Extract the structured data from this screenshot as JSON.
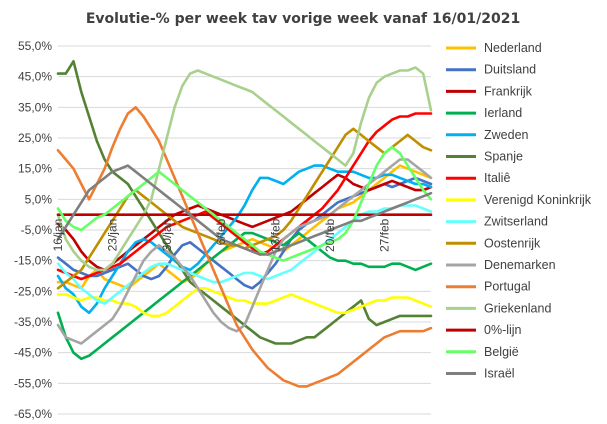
{
  "chart_data": {
    "type": "line",
    "title": "Evolutie-% per week tav vorige week vanaf 16/01/2021",
    "xlabel": "",
    "ylabel": "",
    "ylim": [
      -65,
      55
    ],
    "yticks": [
      55,
      45,
      35,
      25,
      15,
      5,
      -5,
      -15,
      -25,
      -35,
      -45,
      -55,
      -65
    ],
    "ytick_labels": [
      "55,0%",
      "45,0%",
      "35,0%",
      "25,0%",
      "15,0%",
      "5,0%",
      "-5,0%",
      "-15,0%",
      "-25,0%",
      "-35,0%",
      "-45,0%",
      "-55,0%",
      "-65,0%"
    ],
    "x_tick_labels": [
      "16/jan",
      "23/jan",
      "30/jan",
      "6/feb",
      "13/feb",
      "20/feb",
      "27/feb"
    ],
    "x_days": 48,
    "x_tick_positions": [
      0,
      7,
      14,
      21,
      28,
      35,
      42
    ],
    "grid": "horizontal",
    "legend": "right",
    "series": [
      {
        "name": "Nederland",
        "color": "#FFC000",
        "values": [
          -22,
          -22,
          -23,
          -24,
          -20,
          -18,
          -21,
          -22,
          -23,
          -24,
          -22,
          -20,
          -18,
          -16,
          -18,
          -20,
          -22,
          -21,
          -19,
          -16,
          -14,
          -12,
          -11,
          -10,
          -9,
          -8,
          -9,
          -10,
          -11,
          -12,
          -10,
          -8,
          -6,
          -4,
          -2,
          0,
          2,
          3,
          4,
          6,
          8,
          10,
          12,
          14,
          16,
          15,
          14,
          13,
          12
        ]
      },
      {
        "name": "Duitsland",
        "color": "#4472C4",
        "values": [
          -14,
          -16,
          -18,
          -19,
          -20,
          -20,
          -19,
          -18,
          -17,
          -16,
          -18,
          -20,
          -21,
          -20,
          -17,
          -13,
          -10,
          -9,
          -11,
          -13,
          -15,
          -17,
          -19,
          -21,
          -23,
          -24,
          -22,
          -19,
          -16,
          -12,
          -8,
          -5,
          -3,
          -2,
          0,
          2,
          4,
          5,
          6,
          7,
          8,
          9,
          10,
          9,
          10,
          11,
          12,
          11,
          10
        ]
      },
      {
        "name": "Frankrijk",
        "color": "#C00000",
        "values": [
          -3,
          -5,
          -8,
          -12,
          -15,
          -17,
          -18,
          -16,
          -14,
          -12,
          -10,
          -8,
          -6,
          -4,
          -2,
          0,
          1,
          2,
          3,
          2,
          1,
          0,
          -1,
          -2,
          -3,
          -4,
          -3,
          -2,
          -1,
          0,
          1,
          3,
          5,
          7,
          9,
          11,
          13,
          12,
          10,
          9,
          8,
          9,
          10,
          11,
          10,
          9,
          8,
          8,
          9
        ]
      },
      {
        "name": "Ierland",
        "color": "#00B050",
        "values": [
          -32,
          -40,
          -45,
          -47,
          -46,
          -44,
          -42,
          -40,
          -38,
          -36,
          -34,
          -32,
          -30,
          -28,
          -26,
          -24,
          -22,
          -20,
          -18,
          -16,
          -14,
          -12,
          -10,
          -8,
          -6,
          -6,
          -7,
          -8,
          -9,
          -10,
          -8,
          -6,
          -8,
          -10,
          -12,
          -14,
          -15,
          -15,
          -16,
          -16,
          -17,
          -17,
          -17,
          -16,
          -16,
          -17,
          -18,
          -17,
          -16
        ]
      },
      {
        "name": "Zweden",
        "color": "#00B0F0",
        "values": [
          -20,
          -24,
          -26,
          -30,
          -32,
          -29,
          -24,
          -20,
          -16,
          -12,
          -9,
          -8,
          -9,
          -11,
          -13,
          -15,
          -17,
          -18,
          -16,
          -13,
          -10,
          -7,
          -4,
          -1,
          3,
          8,
          12,
          12,
          11,
          10,
          12,
          14,
          15,
          16,
          16,
          15,
          14,
          14,
          14,
          13,
          12,
          12,
          13,
          13,
          12,
          11,
          10,
          10,
          9
        ]
      },
      {
        "name": "Spanje",
        "color": "#548235",
        "values": [
          46,
          46,
          50,
          40,
          32,
          24,
          18,
          14,
          12,
          10,
          6,
          2,
          -2,
          -6,
          -10,
          -14,
          -18,
          -22,
          -24,
          -26,
          -28,
          -30,
          -32,
          -34,
          -36,
          -38,
          -40,
          -41,
          -42,
          -42,
          -42,
          -41,
          -40,
          -40,
          -38,
          -36,
          -34,
          -32,
          -30,
          -28,
          -34,
          -36,
          -35,
          -34,
          -33,
          -33,
          -33,
          -33,
          -33
        ]
      },
      {
        "name": "Italiê",
        "color": "#FF0000",
        "values": [
          -18,
          -19,
          -20,
          -21,
          -20,
          -19,
          -18,
          -17,
          -16,
          -14,
          -12,
          -10,
          -8,
          -6,
          -4,
          -3,
          -2,
          -1,
          0,
          1,
          -1,
          -3,
          -5,
          -7,
          -9,
          -11,
          -13,
          -12,
          -10,
          -8,
          -6,
          -4,
          -2,
          0,
          2,
          5,
          8,
          12,
          16,
          20,
          24,
          27,
          29,
          31,
          32,
          32,
          33,
          33,
          33
        ]
      },
      {
        "name": "Verenigd Koninkrijk",
        "color": "#FFFF00",
        "values": [
          -26,
          -26,
          -27,
          -28,
          -27,
          -27,
          -28,
          -28,
          -29,
          -29,
          -30,
          -32,
          -33,
          -33,
          -32,
          -30,
          -28,
          -26,
          -24,
          -24,
          -25,
          -26,
          -27,
          -28,
          -28,
          -29,
          -29,
          -29,
          -28,
          -27,
          -26,
          -27,
          -28,
          -29,
          -30,
          -31,
          -32,
          -32,
          -31,
          -30,
          -29,
          -28,
          -28,
          -27,
          -27,
          -27,
          -28,
          -29,
          -30
        ]
      },
      {
        "name": "Zwitserland",
        "color": "#66FFFF",
        "values": [
          -16,
          -19,
          -21,
          -24,
          -26,
          -28,
          -29,
          -27,
          -25,
          -23,
          -21,
          -19,
          -17,
          -16,
          -16,
          -17,
          -18,
          -19,
          -20,
          -21,
          -22,
          -22,
          -21,
          -20,
          -19,
          -19,
          -20,
          -21,
          -20,
          -19,
          -18,
          -16,
          -14,
          -12,
          -10,
          -8,
          -6,
          -4,
          -2,
          0,
          1,
          1,
          2,
          2,
          3,
          3,
          3,
          2,
          1
        ]
      },
      {
        "name": "Oostenrijk",
        "color": "#BF8F00",
        "values": [
          -24,
          -22,
          -20,
          -18,
          -14,
          -10,
          -6,
          -2,
          2,
          6,
          8,
          6,
          4,
          2,
          0,
          -2,
          -4,
          -5,
          -6,
          -7,
          -8,
          -9,
          -10,
          -10,
          -11,
          -10,
          -9,
          -8,
          -7,
          -5,
          -2,
          2,
          6,
          10,
          14,
          18,
          22,
          26,
          28,
          26,
          24,
          22,
          20,
          22,
          24,
          26,
          24,
          22,
          21
        ]
      },
      {
        "name": "Denemarken",
        "color": "#A5A5A5",
        "values": [
          -36,
          -40,
          -41,
          -42,
          -40,
          -38,
          -36,
          -34,
          -30,
          -25,
          -20,
          -15,
          -12,
          -10,
          -12,
          -14,
          -17,
          -20,
          -24,
          -28,
          -32,
          -35,
          -37,
          -38,
          -36,
          -30,
          -24,
          -18,
          -12,
          -8,
          -6,
          -4,
          -3,
          -2,
          -1,
          0,
          2,
          4,
          6,
          8,
          10,
          12,
          14,
          16,
          18,
          18,
          16,
          14,
          12
        ]
      },
      {
        "name": "Portugal",
        "color": "#ED7D31",
        "values": [
          21,
          18,
          15,
          10,
          5,
          10,
          15,
          22,
          28,
          33,
          35,
          32,
          28,
          24,
          18,
          12,
          6,
          0,
          -6,
          -12,
          -18,
          -24,
          -30,
          -36,
          -40,
          -44,
          -47,
          -50,
          -52,
          -54,
          -55,
          -56,
          -56,
          -55,
          -54,
          -53,
          -52,
          -50,
          -48,
          -46,
          -44,
          -42,
          -40,
          -39,
          -38,
          -38,
          -38,
          -38,
          -37
        ]
      },
      {
        "name": "Griekenland",
        "color": "#A9D18E",
        "values": [
          0,
          -8,
          -12,
          -15,
          -17,
          -18,
          -18,
          -16,
          -12,
          -8,
          -4,
          0,
          5,
          15,
          25,
          35,
          42,
          46,
          47,
          46,
          45,
          44,
          43,
          42,
          41,
          40,
          38,
          36,
          34,
          32,
          30,
          28,
          26,
          24,
          22,
          20,
          18,
          16,
          20,
          30,
          38,
          43,
          45,
          46,
          47,
          47,
          48,
          46,
          34
        ]
      },
      {
        "name": "0%-lijn",
        "color": "#C00000",
        "values": [
          0,
          0,
          0,
          0,
          0,
          0,
          0,
          0,
          0,
          0,
          0,
          0,
          0,
          0,
          0,
          0,
          0,
          0,
          0,
          0,
          0,
          0,
          0,
          0,
          0,
          0,
          0,
          0,
          0,
          0,
          0,
          0,
          0,
          0,
          0,
          0,
          0,
          0,
          0,
          0,
          0,
          0,
          0,
          0,
          0,
          0,
          0,
          0,
          0
        ]
      },
      {
        "name": "België",
        "color": "#66FF66",
        "values": [
          2,
          -2,
          -4,
          -5,
          -3,
          -1,
          0,
          2,
          4,
          6,
          8,
          10,
          12,
          14,
          12,
          10,
          8,
          6,
          4,
          2,
          0,
          -2,
          -4,
          -6,
          -8,
          -10,
          -12,
          -13,
          -14,
          -15,
          -14,
          -13,
          -12,
          -11,
          -10,
          -9,
          -8,
          -6,
          -2,
          4,
          10,
          16,
          20,
          22,
          20,
          16,
          12,
          8,
          5
        ]
      },
      {
        "name": "Israël",
        "color": "#7F7F7F",
        "values": [
          -8,
          -4,
          0,
          4,
          8,
          10,
          12,
          14,
          15,
          16,
          14,
          12,
          10,
          8,
          6,
          4,
          2,
          0,
          -2,
          -4,
          -6,
          -8,
          -9,
          -10,
          -11,
          -12,
          -13,
          -13,
          -12,
          -11,
          -10,
          -9,
          -8,
          -7,
          -6,
          -5,
          -4,
          -3,
          -2,
          -2,
          -1,
          0,
          1,
          2,
          3,
          4,
          5,
          6,
          7
        ]
      }
    ]
  }
}
